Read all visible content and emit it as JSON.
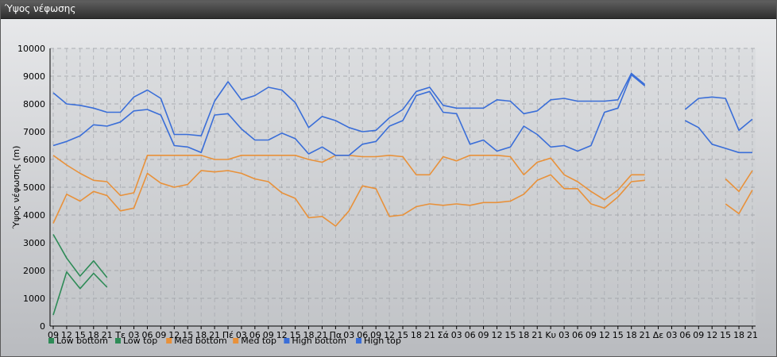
{
  "window": {
    "title": "Ύψος νέφωσης"
  },
  "chart_data": {
    "type": "line",
    "title": "",
    "xlabel": "",
    "ylabel": "Ύψος νέφωσης (m)",
    "ylim": [
      0,
      10000
    ],
    "yticks": [
      0,
      1000,
      2000,
      3000,
      4000,
      5000,
      6000,
      7000,
      8000,
      9000,
      10000
    ],
    "grid": true,
    "legend_position": "bottom-left",
    "categories": [
      "09",
      "12",
      "15",
      "18",
      "21",
      "Τε",
      "03",
      "06",
      "09",
      "12",
      "15",
      "18",
      "21",
      "Πέ",
      "03",
      "06",
      "09",
      "12",
      "15",
      "18",
      "21",
      "Πα",
      "03",
      "06",
      "09",
      "12",
      "15",
      "18",
      "21",
      "Σά",
      "03",
      "06",
      "09",
      "12",
      "15",
      "18",
      "21",
      "Κυ",
      "03",
      "06",
      "09",
      "12",
      "15",
      "18",
      "21",
      "Δε",
      "03",
      "06",
      "09",
      "12",
      "15",
      "18",
      "21"
    ],
    "series": [
      {
        "name": "Low bottom",
        "color": "#2e8b57",
        "values": [
          400,
          1950,
          1350,
          1900,
          1400,
          null,
          null,
          null,
          null,
          null,
          null,
          null,
          null,
          null,
          null,
          null,
          null,
          null,
          null,
          null,
          null,
          null,
          null,
          null,
          null,
          null,
          null,
          null,
          null,
          null,
          null,
          null,
          null,
          null,
          null,
          null,
          null,
          null,
          null,
          null,
          null,
          null,
          null,
          null,
          null,
          null,
          null,
          null,
          null,
          null,
          null,
          null,
          null
        ]
      },
      {
        "name": "Low top",
        "color": "#2e8b57",
        "values": [
          3300,
          2450,
          1800,
          2350,
          1750,
          null,
          null,
          null,
          null,
          null,
          null,
          null,
          null,
          null,
          null,
          null,
          null,
          null,
          null,
          null,
          null,
          null,
          null,
          null,
          null,
          null,
          null,
          null,
          null,
          null,
          null,
          null,
          null,
          null,
          null,
          null,
          null,
          null,
          null,
          null,
          null,
          null,
          null,
          null,
          null,
          null,
          null,
          null,
          null,
          null,
          null,
          null,
          null
        ]
      },
      {
        "name": "Med bottom",
        "color": "#e8913a",
        "values": [
          3700,
          4750,
          4500,
          4850,
          4700,
          4150,
          4250,
          5500,
          5150,
          5000,
          5100,
          5600,
          5550,
          5600,
          5500,
          5300,
          5200,
          4800,
          4600,
          3900,
          3950,
          3600,
          4150,
          5050,
          4950,
          3950,
          4000,
          4300,
          4400,
          4350,
          4400,
          4350,
          4450,
          4450,
          4500,
          4750,
          5250,
          5450,
          4950,
          4950,
          4400,
          4250,
          4650,
          5200,
          5250,
          null,
          null,
          null,
          null,
          null,
          4400,
          4050,
          4900
        ]
      },
      {
        "name": "Med top",
        "color": "#e8913a",
        "values": [
          6150,
          5800,
          5500,
          5250,
          5200,
          4700,
          4800,
          6150,
          6150,
          6150,
          6150,
          6150,
          6000,
          6000,
          6150,
          6150,
          6150,
          6150,
          6150,
          6000,
          5900,
          6150,
          6150,
          6100,
          6100,
          6150,
          6100,
          5450,
          5450,
          6100,
          5950,
          6150,
          6150,
          6150,
          6100,
          5450,
          5900,
          6050,
          5450,
          5200,
          4850,
          4550,
          4900,
          5450,
          5450,
          null,
          null,
          null,
          null,
          null,
          5300,
          4850,
          5600
        ]
      },
      {
        "name": "High bottom",
        "color": "#3a6ed8",
        "values": [
          6500,
          6650,
          6850,
          7250,
          7200,
          7350,
          7750,
          7800,
          7600,
          6500,
          6450,
          6250,
          7600,
          7650,
          7100,
          6700,
          6700,
          6950,
          6750,
          6200,
          6450,
          6150,
          6150,
          6550,
          6650,
          7200,
          7400,
          8300,
          8450,
          7700,
          7650,
          6550,
          6700,
          6300,
          6450,
          7200,
          6900,
          6450,
          6500,
          6300,
          6500,
          7700,
          7850,
          9050,
          8650,
          null,
          null,
          7400,
          7150,
          6550,
          6400,
          6250,
          6250
        ]
      },
      {
        "name": "High top",
        "color": "#3a6ed8",
        "values": [
          8400,
          8000,
          7950,
          7850,
          7700,
          7700,
          8250,
          8500,
          8200,
          6900,
          6900,
          6850,
          8100,
          8800,
          8150,
          8300,
          8600,
          8500,
          8050,
          7150,
          7550,
          7400,
          7150,
          7000,
          7050,
          7500,
          7800,
          8450,
          8600,
          7950,
          7850,
          7850,
          7850,
          8150,
          8100,
          7650,
          7750,
          8150,
          8200,
          8100,
          8100,
          8100,
          8150,
          9100,
          8700,
          null,
          null,
          7800,
          8200,
          8250,
          8200,
          7050,
          7450
        ]
      }
    ]
  }
}
